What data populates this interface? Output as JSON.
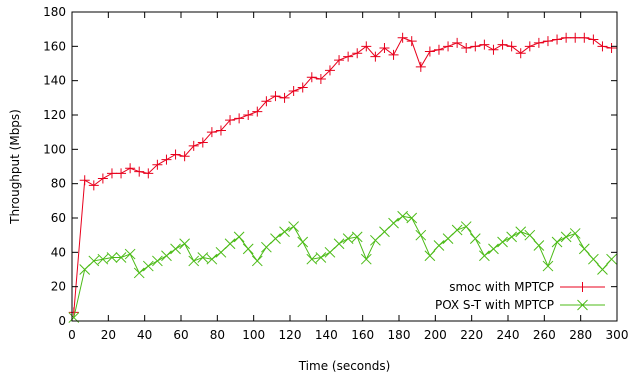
{
  "chart_data": {
    "type": "line",
    "title": "",
    "xlabel": "Time (seconds)",
    "ylabel": "Throughput (Mbps)",
    "xlim": [
      0,
      300
    ],
    "ylim": [
      0,
      180
    ],
    "xticks": [
      0,
      20,
      40,
      60,
      80,
      100,
      120,
      140,
      160,
      180,
      200,
      220,
      240,
      260,
      280,
      300
    ],
    "yticks": [
      0,
      20,
      40,
      60,
      80,
      100,
      120,
      140,
      160,
      180
    ],
    "grid": false,
    "legend_position": "bottom-right",
    "series": [
      {
        "name": "smoc with MPTCP",
        "color": "#e8001c",
        "marker": "plus",
        "x": [
          1,
          7,
          12,
          17,
          22,
          27,
          32,
          37,
          42,
          47,
          52,
          57,
          62,
          67,
          72,
          77,
          82,
          87,
          92,
          97,
          102,
          107,
          112,
          117,
          122,
          127,
          132,
          137,
          142,
          147,
          152,
          157,
          162,
          167,
          172,
          177,
          182,
          187,
          192,
          197,
          202,
          207,
          212,
          217,
          222,
          227,
          232,
          237,
          242,
          247,
          252,
          257,
          262,
          267,
          272,
          277,
          282,
          287,
          292,
          297
        ],
        "y": [
          5,
          82,
          79,
          83,
          86,
          86,
          89,
          87,
          86,
          91,
          94,
          97,
          96,
          102,
          104,
          110,
          111,
          117,
          118,
          120,
          122,
          128,
          131,
          130,
          134,
          136,
          142,
          141,
          146,
          152,
          154,
          156,
          160,
          154,
          159,
          155,
          165,
          163,
          148,
          157,
          158,
          160,
          162,
          159,
          160,
          161,
          158,
          161,
          160,
          156,
          160,
          162,
          163,
          164,
          165,
          165,
          165,
          164,
          160,
          159
        ]
      },
      {
        "name": "POX S-T with MPTCP",
        "color": "#4cbb17",
        "marker": "cross",
        "x": [
          1,
          7,
          12,
          17,
          22,
          27,
          32,
          37,
          42,
          47,
          52,
          57,
          62,
          67,
          72,
          77,
          82,
          87,
          92,
          97,
          102,
          107,
          112,
          117,
          122,
          127,
          132,
          137,
          142,
          147,
          152,
          157,
          162,
          167,
          172,
          177,
          182,
          187,
          192,
          197,
          202,
          207,
          212,
          217,
          222,
          227,
          232,
          237,
          242,
          247,
          252,
          257,
          262,
          267,
          272,
          277,
          282,
          287,
          292,
          297
        ],
        "y": [
          2,
          30,
          35,
          36,
          37,
          37,
          39,
          28,
          32,
          35,
          38,
          42,
          45,
          35,
          37,
          36,
          40,
          45,
          49,
          42,
          35,
          43,
          48,
          52,
          55,
          46,
          36,
          37,
          40,
          45,
          48,
          49,
          36,
          47,
          52,
          57,
          61,
          60,
          50,
          38,
          44,
          48,
          53,
          55,
          48,
          38,
          42,
          46,
          49,
          52,
          50,
          44,
          32,
          46,
          49,
          51,
          42,
          36,
          30,
          36
        ]
      }
    ]
  }
}
